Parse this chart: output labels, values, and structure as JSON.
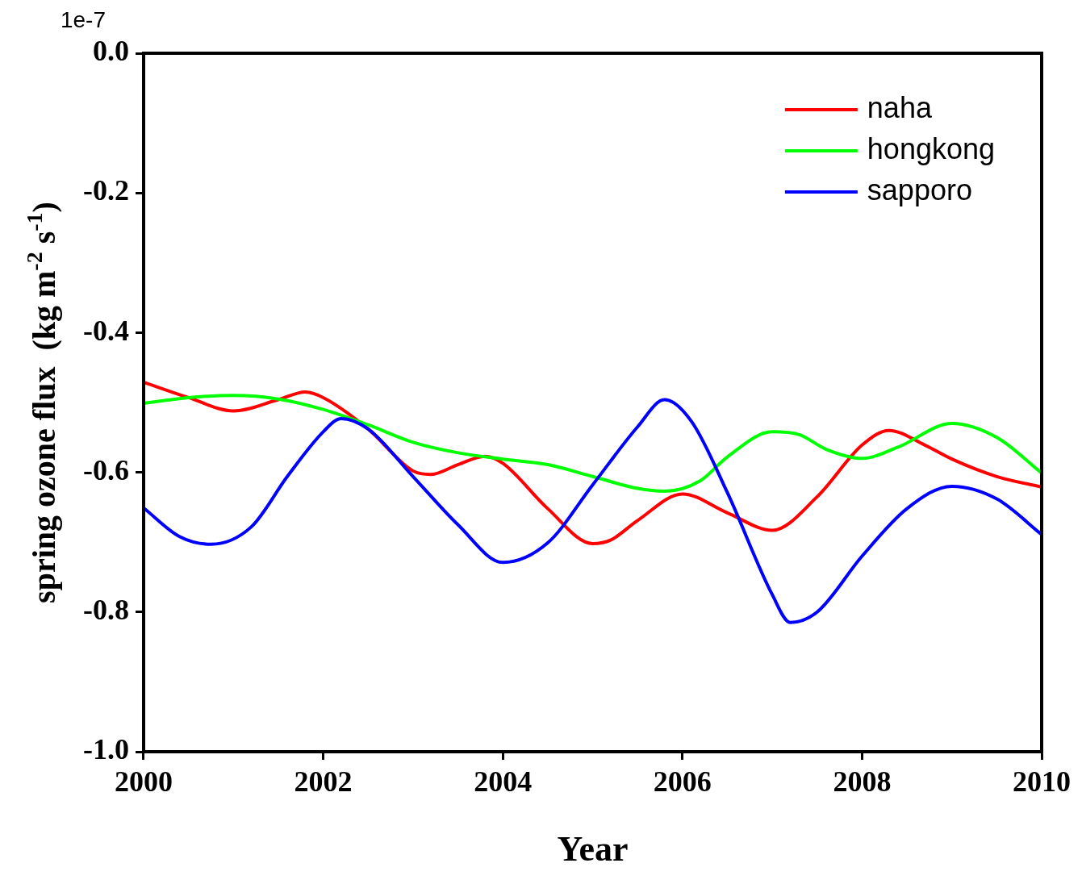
{
  "chart_data": {
    "type": "line",
    "xlabel": "Year",
    "ylabel": "spring ozone flux  (kg m$^{-2}$ s$^{-1}$)",
    "annotations": [
      "1e-7"
    ],
    "xlim": [
      2000,
      2010
    ],
    "xticks": [
      2000,
      2002,
      2004,
      2006,
      2008,
      2010
    ],
    "ylim": [
      -1,
      0
    ],
    "yticks": [
      {
        "value": -1,
        "label": "-1.0"
      },
      -0.8,
      -0.6,
      -0.4,
      -0.2,
      {
        "value": 0,
        "label": "0.0"
      }
    ],
    "grid": false,
    "legend": "top right",
    "marker": "none",
    "line_style": "solid",
    "series": [
      {
        "name": "naha",
        "color": "#ff0000",
        "x": [
          2000,
          2000.5,
          2001,
          2001.5,
          2001.8,
          2002,
          2002.5,
          2003,
          2003.2,
          2003.5,
          2003.8,
          2004,
          2004.5,
          2005,
          2005.2,
          2005.5,
          2006,
          2006.5,
          2007,
          2007.5,
          2008,
          2008.3,
          2008.7,
          2009,
          2009.5,
          2010
        ],
        "values": [
          -0.471,
          -0.493,
          -0.512,
          -0.496,
          -0.485,
          -0.493,
          -0.538,
          -0.598,
          -0.603,
          -0.589,
          -0.577,
          -0.587,
          -0.652,
          -0.702,
          -0.697,
          -0.669,
          -0.631,
          -0.658,
          -0.683,
          -0.635,
          -0.561,
          -0.54,
          -0.561,
          -0.581,
          -0.606,
          -0.621
        ]
      },
      {
        "name": "hongkong",
        "color": "#00ff00",
        "x": [
          2000,
          2000.5,
          2001,
          2001.5,
          2002,
          2002.5,
          2003,
          2003.5,
          2004,
          2004.5,
          2005,
          2005.5,
          2005.8,
          2006.2,
          2006.5,
          2007,
          2007.3,
          2007.6,
          2008,
          2008.4,
          2009,
          2009.5,
          2010
        ],
        "values": [
          -0.501,
          -0.493,
          -0.49,
          -0.495,
          -0.51,
          -0.532,
          -0.557,
          -0.572,
          -0.581,
          -0.589,
          -0.606,
          -0.623,
          -0.627,
          -0.612,
          -0.578,
          -0.542,
          -0.546,
          -0.567,
          -0.58,
          -0.564,
          -0.53,
          -0.55,
          -0.601
        ]
      },
      {
        "name": "sapporo",
        "color": "#0000ff",
        "x": [
          2000,
          2000.4,
          2000.75,
          2001.2,
          2001.6,
          2002,
          2002.2,
          2002.5,
          2003,
          2003.5,
          2004,
          2004.5,
          2005,
          2005.5,
          2005.8,
          2006.1,
          2006.5,
          2007,
          2007.2,
          2007.5,
          2008,
          2008.5,
          2009,
          2009.5,
          2010
        ],
        "values": [
          -0.651,
          -0.692,
          -0.703,
          -0.678,
          -0.606,
          -0.542,
          -0.523,
          -0.538,
          -0.606,
          -0.675,
          -0.729,
          -0.701,
          -0.618,
          -0.535,
          -0.496,
          -0.527,
          -0.629,
          -0.775,
          -0.815,
          -0.8,
          -0.72,
          -0.652,
          -0.62,
          -0.638,
          -0.689
        ]
      }
    ]
  }
}
